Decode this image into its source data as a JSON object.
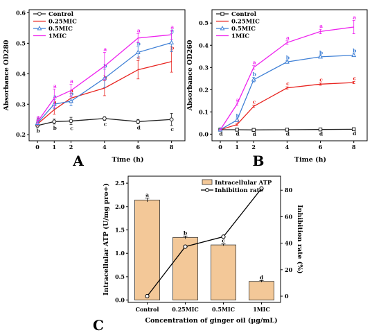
{
  "chart_data": [
    {
      "type": "line",
      "panel_label": "A",
      "xlabel": "Time (h)",
      "ylabel": "Absorbance OD280",
      "x": [
        0,
        1,
        2,
        4,
        6,
        8
      ],
      "xticks": [
        "0",
        "1",
        "2",
        "4",
        "6",
        "8"
      ],
      "yticks": [
        "0.2",
        "0.3",
        "0.4",
        "0.5",
        "0.6"
      ],
      "xlim": [
        -0.5,
        8.8
      ],
      "ylim": [
        0.18,
        0.61
      ],
      "legend_position": "top-left",
      "series": [
        {
          "name": "Control",
          "color": "#222222",
          "marker": "circle",
          "values": [
            0.23,
            0.243,
            0.245,
            0.253,
            0.243,
            0.25
          ],
          "errors": [
            0.005,
            0.008,
            0.012,
            0.006,
            0.007,
            0.02
          ],
          "labels": [
            "b",
            "b",
            "c",
            "c",
            "d",
            "c"
          ]
        },
        {
          "name": "0.25MIC",
          "color": "#e8231f",
          "marker": "none",
          "values": [
            0.235,
            0.282,
            0.32,
            0.353,
            0.413,
            0.44
          ],
          "errors": [
            0.006,
            0.015,
            0.015,
            0.025,
            0.03,
            0.035
          ],
          "labels": [
            "a",
            "a",
            "a",
            "b",
            "c",
            "b"
          ]
        },
        {
          "name": "0.5MIC",
          "color": "#3f80d6",
          "marker": "triangle",
          "values": [
            0.238,
            0.3,
            0.31,
            0.385,
            0.47,
            0.502
          ],
          "errors": [
            0.006,
            0.015,
            0.015,
            0.03,
            0.018,
            0.03
          ],
          "labels": [
            "a",
            "a",
            "b",
            "b",
            "b",
            "a"
          ]
        },
        {
          "name": "1MIC",
          "color": "#ee22ee",
          "marker": "none",
          "values": [
            0.242,
            0.32,
            0.345,
            0.425,
            0.517,
            0.528
          ],
          "errors": [
            0.006,
            0.03,
            0.02,
            0.045,
            0.015,
            0.015
          ],
          "labels": [
            "a",
            "a",
            "a",
            "a",
            "a",
            "a"
          ]
        }
      ]
    },
    {
      "type": "line",
      "panel_label": "B",
      "xlabel": "Time (h)",
      "ylabel": "Absorbance OD260",
      "x": [
        0,
        1,
        2,
        4,
        6,
        8
      ],
      "xticks": [
        "0",
        "1",
        "2",
        "4",
        "6",
        "8"
      ],
      "yticks": [
        "0.0",
        "0.1",
        "0.2",
        "0.3",
        "0.4",
        "0.5"
      ],
      "xlim": [
        -0.5,
        8.8
      ],
      "ylim": [
        -0.03,
        0.56
      ],
      "legend_position": "top-left",
      "series": [
        {
          "name": "Control",
          "color": "#222222",
          "marker": "square",
          "values": [
            0.02,
            0.02,
            0.019,
            0.02,
            0.021,
            0.022
          ],
          "errors": [
            0.002,
            0.002,
            0.002,
            0.002,
            0.002,
            0.002
          ],
          "labels": [
            "d",
            "d",
            "d",
            "d",
            "d",
            "d"
          ]
        },
        {
          "name": "0.25MIC",
          "color": "#e8231f",
          "marker": "none",
          "values": [
            0.02,
            0.043,
            0.125,
            0.208,
            0.225,
            0.232
          ],
          "errors": [
            0.002,
            0.004,
            0.005,
            0.005,
            0.005,
            0.005
          ],
          "labels": [
            "",
            "c",
            "c",
            "c",
            "c",
            "c"
          ]
        },
        {
          "name": "0.5MIC",
          "color": "#3f80d6",
          "marker": "triangle",
          "values": [
            0.02,
            0.063,
            0.245,
            0.325,
            0.348,
            0.355
          ],
          "errors": [
            0.002,
            0.005,
            0.01,
            0.005,
            0.005,
            0.006
          ],
          "labels": [
            "",
            "b",
            "b",
            "b",
            "b",
            "b"
          ]
        },
        {
          "name": "1MIC",
          "color": "#ee22ee",
          "marker": "none",
          "values": [
            0.02,
            0.135,
            0.3,
            0.412,
            0.462,
            0.482
          ],
          "errors": [
            0.002,
            0.005,
            0.008,
            0.008,
            0.01,
            0.03
          ],
          "labels": [
            "",
            "a",
            "a",
            "a",
            "a",
            "a"
          ]
        }
      ]
    },
    {
      "type": "bar",
      "panel_label": "C",
      "xlabel": "Concentration of ginger oil (μg/mL)",
      "ylabel": "Intracellular ATP (U/mg pro+)",
      "y2label": "Inhibition rate (%)",
      "categories": [
        "Control",
        "0.25MIC",
        "0.5MIC",
        "1MIC"
      ],
      "yticks": [
        "0.0",
        "0.5",
        "1.0",
        "1.5",
        "2.0",
        "2.5"
      ],
      "y2ticks": [
        "0",
        "20",
        "40",
        "60",
        "80"
      ],
      "ylim": [
        -0.05,
        2.65
      ],
      "y2lim": [
        -4.7,
        90.6
      ],
      "legend_position": "top-right",
      "series": [
        {
          "name": "Intracellular ATP",
          "axis": "left",
          "color": "#f3c898",
          "values": [
            2.14,
            1.34,
            1.18,
            0.4
          ],
          "errors": [
            0.04,
            0.03,
            0.02,
            0.02
          ],
          "labels": [
            "a",
            "b",
            "c",
            "d"
          ]
        },
        {
          "name": "Inhibition rate",
          "axis": "right",
          "color": "#000000",
          "values": [
            0,
            37.4,
            44.9,
            81.3
          ]
        }
      ]
    }
  ]
}
